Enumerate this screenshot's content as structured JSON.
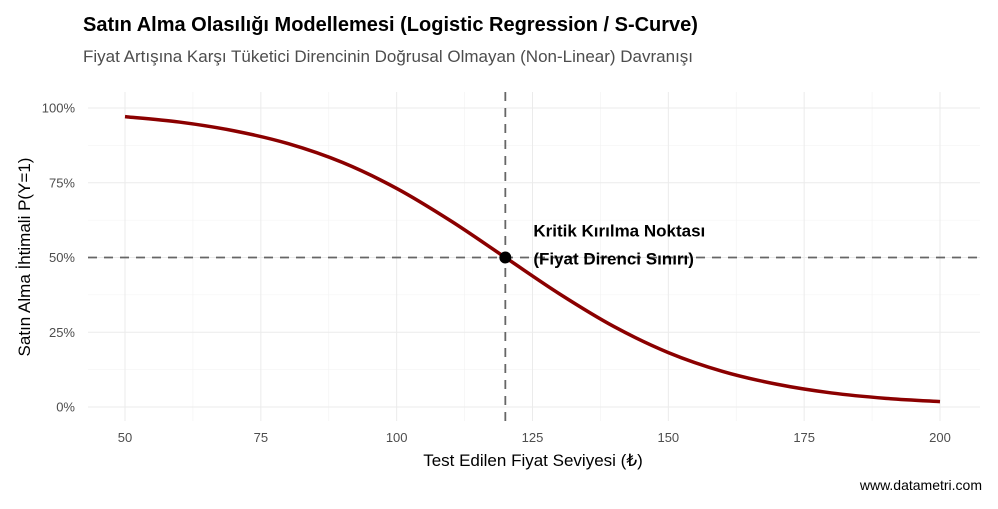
{
  "title": "Satın Alma Olasılığı Modellemesi (Logistic Regression / S-Curve)",
  "subtitle": "Fiyat Artışına Karşı Tüketici Direncinin Doğrusal Olmayan (Non-Linear) Davranışı",
  "caption": "www.datametri.com",
  "chart_data": {
    "type": "line",
    "title": "Satın Alma Olasılığı Modellemesi (Logistic Regression / S-Curve)",
    "xlabel": "Test Edilen Fiyat Seviyesi (₺)",
    "ylabel": "Satın Alma İhtimali P(Y=1)",
    "xlim": [
      50,
      200
    ],
    "ylim": [
      0,
      1
    ],
    "x_ticks": [
      50,
      75,
      100,
      125,
      150,
      175,
      200
    ],
    "x_tick_labels": [
      "50",
      "75",
      "100",
      "125",
      "150",
      "175",
      "200"
    ],
    "y_ticks": [
      0,
      0.25,
      0.5,
      0.75,
      1
    ],
    "y_tick_labels": [
      "0%",
      "25%",
      "50%",
      "75%",
      "100%"
    ],
    "grid": true,
    "series": [
      {
        "color": "#8B0000",
        "x": [
          50,
          60,
          70,
          80,
          90,
          100,
          110,
          120,
          130,
          140,
          150,
          160,
          170,
          180,
          190,
          200
        ],
        "y": [
          0.971,
          0.953,
          0.924,
          0.881,
          0.818,
          0.731,
          0.622,
          0.5,
          0.378,
          0.269,
          0.182,
          0.119,
          0.076,
          0.047,
          0.029,
          0.018
        ]
      }
    ],
    "reference_lines": {
      "vertical_x": 120,
      "horizontal_y": 0.5,
      "style": "dashed",
      "color": "#666666"
    },
    "point": {
      "x": 120,
      "y": 0.5,
      "color": "#000000"
    },
    "annotation": [
      "Kritik Kırılma Noktası",
      "(Fiyat Direnci Sınırı)"
    ]
  }
}
